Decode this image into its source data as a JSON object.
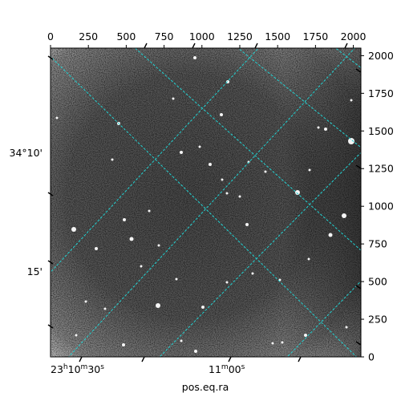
{
  "figure": {
    "xlabel": "pos.eq.ra",
    "top_axis_ticks": [
      "0",
      "250",
      "500",
      "750",
      "1000",
      "1250",
      "1500",
      "1750",
      "2000"
    ],
    "right_axis_ticks": [
      "0",
      "250",
      "500",
      "750",
      "1000",
      "1250",
      "1500",
      "1750",
      "2000"
    ],
    "ra_labels": {
      "first": {
        "h": "23",
        "h_unit": "h",
        "m": "10",
        "m_unit": "m",
        "s": "30",
        "s_unit": "s"
      },
      "second": {
        "m": "11",
        "m_unit": "m",
        "s": "00",
        "s_unit": "s"
      }
    },
    "dec_labels": [
      "34°10'",
      "15'"
    ],
    "grid_color": "#22d3d3",
    "image_style": "grayscale astronomical image with bright point sources"
  },
  "chart_data": {
    "type": "image",
    "title": "",
    "xlabel": "pos.eq.ra",
    "ylabel": "",
    "pixel_axis_x": {
      "ticks": [
        0,
        250,
        500,
        750,
        1000,
        1250,
        1500,
        1750,
        2000
      ],
      "range": [
        0,
        2050
      ]
    },
    "pixel_axis_y": {
      "ticks": [
        0,
        250,
        500,
        750,
        1000,
        1250,
        1500,
        1750,
        2000
      ],
      "range": [
        0,
        2050
      ]
    },
    "world_axis_ra": [
      "23h10m30s",
      "11m00s"
    ],
    "world_axis_dec": [
      "34°10'",
      "15'"
    ],
    "grid": true
  }
}
